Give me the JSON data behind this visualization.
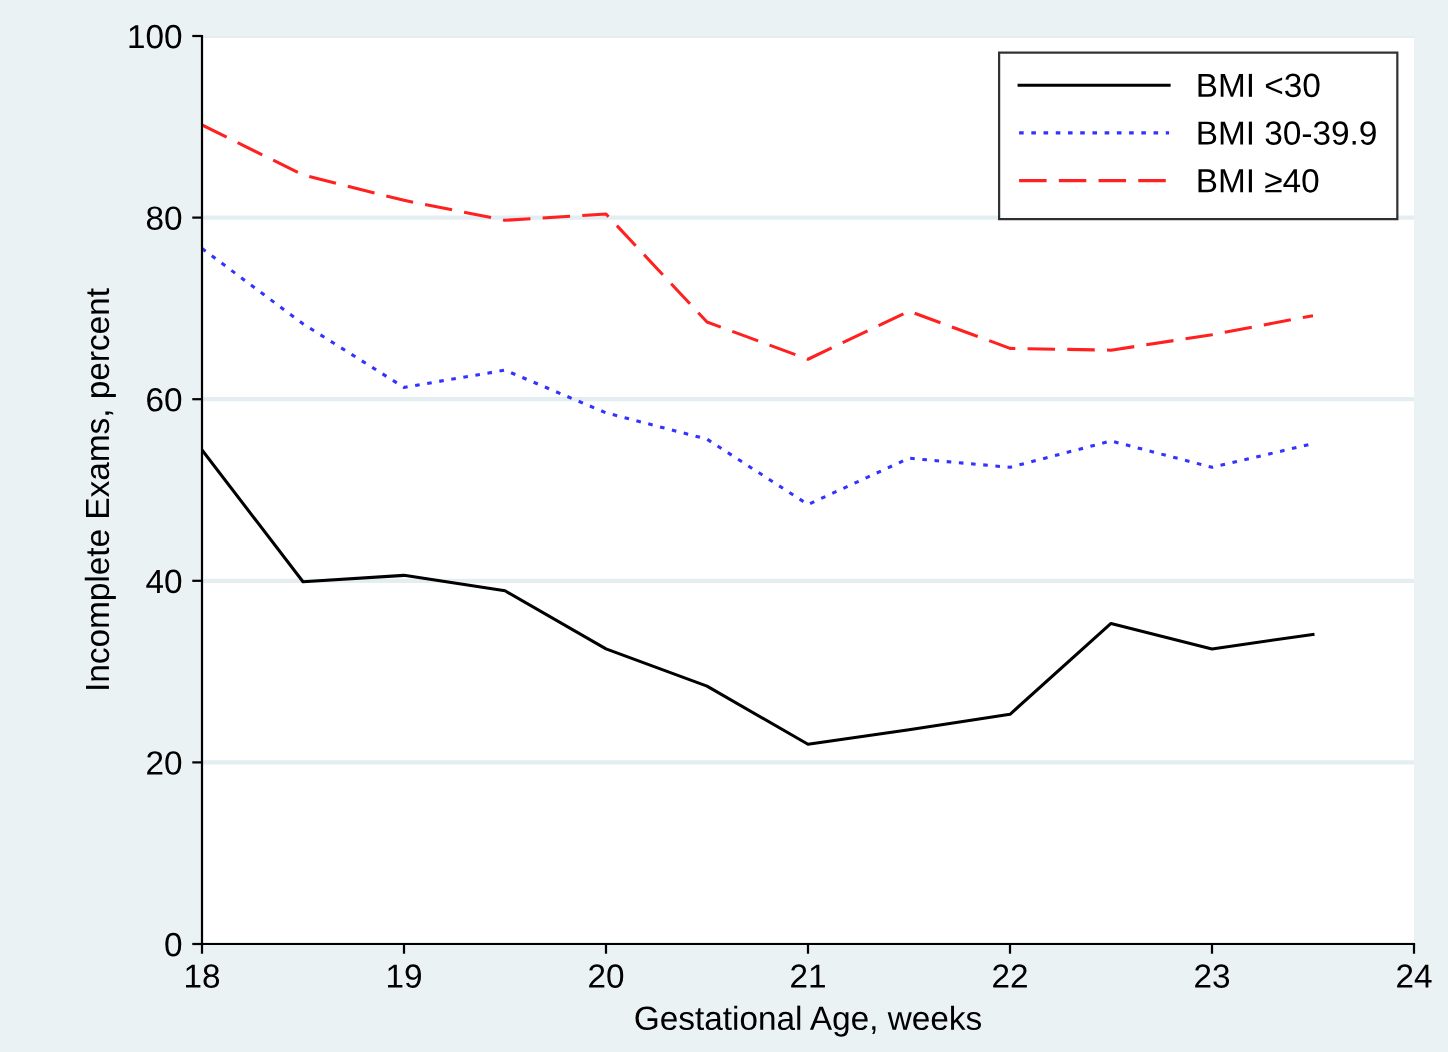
{
  "chart_data": {
    "type": "line",
    "xlabel": "Gestational Age, weeks",
    "ylabel": "Incomplete Exams, percent",
    "x": [
      18,
      18.5,
      19,
      19.5,
      20,
      20.5,
      21,
      21.5,
      22,
      22.5,
      23,
      23.5
    ],
    "series": [
      {
        "name": "BMI <30",
        "color": "#000000",
        "line_style": "solid",
        "values": [
          54.4,
          39.9,
          40.6,
          38.9,
          32.5,
          28.4,
          22,
          23.6,
          25.3,
          35.3,
          32.5,
          34.1
        ]
      },
      {
        "name": "BMI 30-39.9",
        "color": "#3333ff",
        "line_style": "dotted",
        "values": [
          76.6,
          68.3,
          61.3,
          63.2,
          58.5,
          55.6,
          48.4,
          53.5,
          52.5,
          55.4,
          52.5,
          55.1
        ]
      },
      {
        "name": "BMI ≥40",
        "color": "#ff2020",
        "line_style": "dashed",
        "values": [
          90.2,
          84.7,
          81.9,
          79.7,
          80.4,
          68.5,
          64.4,
          69.7,
          65.6,
          65.4,
          67.1,
          69.2
        ]
      }
    ],
    "xlim": [
      18,
      24
    ],
    "xticks": [
      18,
      19,
      20,
      21,
      22,
      23,
      24
    ],
    "ylim": [
      0,
      100
    ],
    "yticks": [
      0,
      20,
      40,
      60,
      80,
      100
    ],
    "grid": "y",
    "legend": "top right"
  }
}
